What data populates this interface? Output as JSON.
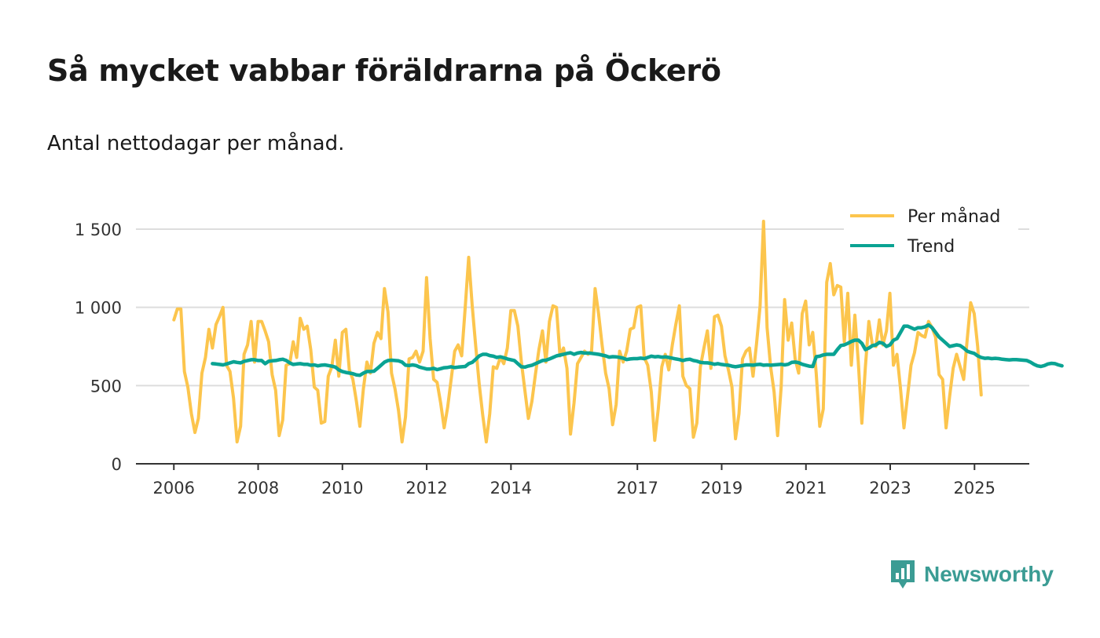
{
  "title": "Så mycket vabbar föräldrarna på Öckerö",
  "subtitle": "Antal nettodagar per månad.",
  "brand": {
    "name": "Newsworthy",
    "icon": "newsworthy-logo-icon"
  },
  "colors": {
    "monthly": "#fcc54d",
    "trend": "#0aa393",
    "grid": "#dddddd",
    "axis": "#333333",
    "brand": "#3b9c94"
  },
  "chart_data": {
    "type": "line",
    "title": "Så mycket vabbar föräldrarna på Öckerö",
    "subtitle": "Antal nettodagar per månad.",
    "xlabel": "",
    "ylabel": "",
    "xlim": [
      2005.1,
      2026.3
    ],
    "ylim": [
      0,
      1500
    ],
    "y_ticks": [
      {
        "value": 0,
        "label": "0"
      },
      {
        "value": 500,
        "label": "500"
      },
      {
        "value": 1000,
        "label": "1 000"
      },
      {
        "value": 1500,
        "label": "1 500"
      }
    ],
    "x_ticks": [
      {
        "value": 2006,
        "label": "2006"
      },
      {
        "value": 2008,
        "label": "2008"
      },
      {
        "value": 2010,
        "label": "2010"
      },
      {
        "value": 2012,
        "label": "2012"
      },
      {
        "value": 2014,
        "label": "2014"
      },
      {
        "value": 2017,
        "label": "2017"
      },
      {
        "value": 2019,
        "label": "2019"
      },
      {
        "value": 2021,
        "label": "2021"
      },
      {
        "value": 2023,
        "label": "2023"
      },
      {
        "value": 2025,
        "label": "2025"
      }
    ],
    "legend": {
      "position": "top-right",
      "entries": [
        "Per månad",
        "Trend"
      ]
    },
    "grid": true,
    "series": [
      {
        "name": "Per månad",
        "x_start": 2006.0,
        "x_step": 0.0833,
        "values": [
          920,
          990,
          990,
          590,
          490,
          320,
          200,
          290,
          580,
          680,
          860,
          740,
          890,
          940,
          1000,
          630,
          590,
          420,
          140,
          240,
          700,
          760,
          910,
          650,
          910,
          910,
          850,
          780,
          570,
          470,
          180,
          280,
          630,
          640,
          780,
          680,
          930,
          860,
          880,
          730,
          490,
          470,
          260,
          270,
          560,
          620,
          790,
          560,
          840,
          860,
          600,
          540,
          400,
          240,
          480,
          650,
          580,
          770,
          840,
          800,
          1120,
          970,
          580,
          480,
          340,
          140,
          300,
          670,
          680,
          720,
          650,
          720,
          1190,
          800,
          540,
          520,
          390,
          230,
          360,
          540,
          720,
          760,
          690,
          1000,
          1320,
          1010,
          750,
          510,
          310,
          140,
          320,
          620,
          610,
          680,
          640,
          740,
          980,
          980,
          880,
          650,
          470,
          290,
          400,
          570,
          730,
          850,
          650,
          910,
          1010,
          1000,
          690,
          740,
          610,
          190,
          390,
          640,
          680,
          720,
          700,
          720,
          1120,
          960,
          760,
          580,
          480,
          250,
          380,
          720,
          650,
          720,
          860,
          870,
          1000,
          1010,
          680,
          630,
          460,
          150,
          350,
          620,
          700,
          600,
          760,
          890,
          1010,
          560,
          500,
          480,
          170,
          260,
          620,
          740,
          850,
          610,
          940,
          950,
          880,
          690,
          600,
          490,
          160,
          320,
          670,
          720,
          740,
          560,
          770,
          1010,
          1550,
          870,
          620,
          460,
          180,
          490,
          1050,
          790,
          900,
          670,
          580,
          960,
          1040,
          760,
          840,
          580,
          240,
          350,
          1160,
          1280,
          1080,
          1140,
          1130,
          780,
          1090,
          630,
          950,
          650,
          260,
          620,
          910,
          760,
          750,
          920,
          760,
          850,
          1090,
          630,
          700,
          480,
          230,
          430,
          630,
          710,
          840,
          820,
          810,
          910,
          870,
          810,
          570,
          540,
          230,
          430,
          610,
          700,
          620,
          540,
          790,
          1030,
          960,
          750,
          440
        ]
      },
      {
        "name": "Trend",
        "x_start": 2006.917,
        "x_step": 0.0833,
        "values": [
          640,
          638,
          635,
          632,
          638,
          645,
          652,
          648,
          645,
          655,
          660,
          665,
          665,
          660,
          660,
          640,
          655,
          658,
          660,
          665,
          668,
          660,
          645,
          635,
          638,
          640,
          636,
          636,
          630,
          632,
          626,
          630,
          632,
          628,
          624,
          618,
          600,
          590,
          584,
          580,
          576,
          568,
          566,
          580,
          590,
          590,
          592,
          610,
          630,
          650,
          660,
          662,
          660,
          658,
          650,
          630,
          628,
          632,
          628,
          618,
          612,
          606,
          606,
          610,
          602,
          608,
          614,
          616,
          620,
          615,
          618,
          620,
          622,
          640,
          648,
          668,
          690,
          700,
          700,
          692,
          688,
          680,
          684,
          678,
          670,
          665,
          660,
          640,
          620,
          618,
          625,
          630,
          640,
          650,
          660,
          662,
          670,
          680,
          690,
          695,
          700,
          706,
          710,
          700,
          708,
          712,
          708,
          708,
          706,
          703,
          700,
          695,
          690,
          682,
          685,
          684,
          680,
          675,
          666,
          670,
          672,
          672,
          675,
          672,
          680,
          688,
          684,
          686,
          682,
          684,
          680,
          675,
          670,
          666,
          660,
          666,
          668,
          660,
          656,
          648,
          646,
          645,
          642,
          636,
          640,
          635,
          632,
          630,
          624,
          620,
          624,
          628,
          632,
          632,
          630,
          634,
          636,
          630,
          632,
          630,
          632,
          634,
          636,
          632,
          636,
          648,
          650,
          646,
          636,
          630,
          624,
          622,
          685,
          688,
          696,
          700,
          700,
          700,
          730,
          756,
          760,
          770,
          782,
          790,
          790,
          770,
          730,
          740,
          755,
          760,
          776,
          770,
          750,
          760,
          790,
          800,
          840,
          880,
          880,
          870,
          860,
          870,
          870,
          876,
          888,
          870,
          840,
          810,
          790,
          770,
          750,
          755,
          760,
          756,
          740,
          720,
          712,
          706,
          690,
          680,
          674,
          676,
          672,
          674,
          672,
          668,
          666,
          664,
          666,
          666,
          664,
          662,
          660,
          650,
          636,
          626,
          622,
          628,
          638,
          642,
          640,
          632,
          626
        ]
      }
    ]
  }
}
